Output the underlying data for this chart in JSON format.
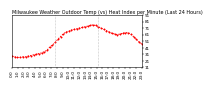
{
  "title": "Milwaukee Weather Outdoor Temp (vs) Heat Index per Minute (Last 24 Hours)",
  "line_color": "#ff0000",
  "background_color": "#ffffff",
  "ylim": [
    11,
    91
  ],
  "yticks": [
    11,
    21,
    31,
    41,
    51,
    61,
    71,
    81,
    91
  ],
  "x_points": [
    0,
    5,
    10,
    15,
    20,
    25,
    30,
    35,
    40,
    45,
    50,
    55,
    60,
    65,
    70,
    75,
    80,
    85,
    90,
    95,
    100,
    105,
    110,
    115,
    120,
    125,
    130,
    135,
    140,
    145,
    150,
    155,
    160,
    165,
    170,
    175,
    180,
    185,
    190,
    195,
    200,
    205,
    210,
    215,
    220,
    225,
    230,
    235,
    240
  ],
  "y_points": [
    28,
    27,
    26,
    26,
    27,
    27,
    28,
    29,
    30,
    31,
    32,
    33,
    35,
    37,
    42,
    45,
    49,
    54,
    58,
    62,
    65,
    66,
    68,
    69,
    70,
    71,
    72,
    73,
    74,
    75,
    76,
    75,
    73,
    71,
    69,
    67,
    65,
    63,
    62,
    61,
    62,
    63,
    64,
    64,
    62,
    58,
    54,
    50,
    47
  ],
  "vlines_x": [
    80,
    160
  ],
  "xtick_labels": [
    "0:0",
    "2:0",
    "4:0",
    "6:0",
    "8:0",
    "10:0",
    "12:0",
    "14:0",
    "16:0",
    "18:0",
    "20:0",
    "22:0",
    "0:0",
    "2:0",
    "4:0",
    "6:0",
    "8:0",
    "10:0",
    "12:0",
    "22:0",
    "22:0",
    "22:0",
    "22:0",
    "22:0"
  ],
  "title_fontsize": 3.5,
  "tick_fontsize": 3.0,
  "line_width": 0.7,
  "marker_size": 1.0
}
